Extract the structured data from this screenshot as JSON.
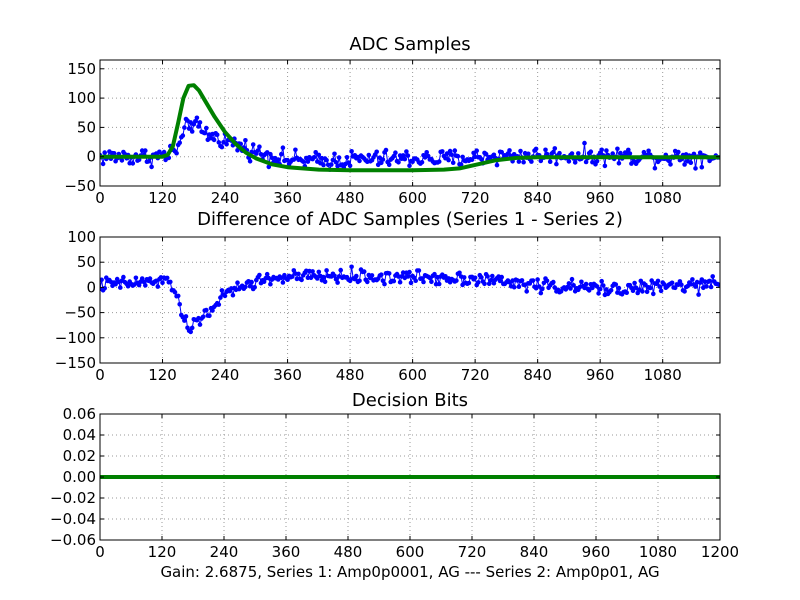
{
  "caption": "Gain: 2.6875, Series 1: Amp0p0001, AG --- Series 2: Amp0p01, AG",
  "colors": {
    "blue": "#0000ff",
    "green": "#008000",
    "grid": "#9a9a9a"
  },
  "chart_data": [
    {
      "type": "line",
      "title": "ADC Samples",
      "xlabel": "",
      "ylabel": "",
      "xlim": [
        0,
        1190
      ],
      "ylim": [
        -50,
        165
      ],
      "x_ticks": [
        "0",
        "120",
        "240",
        "360",
        "480",
        "600",
        "720",
        "840",
        "960",
        "1080"
      ],
      "y_ticks": [
        "−50",
        "0",
        "50",
        "100",
        "150"
      ],
      "x_tick_values": [
        0,
        120,
        240,
        360,
        480,
        600,
        720,
        840,
        960,
        1080
      ],
      "y_tick_values": [
        -50,
        0,
        50,
        100,
        150
      ],
      "grid": true,
      "series": [
        {
          "color": "#0000ff",
          "marker": "dot",
          "style": "noisy",
          "x": [
            0,
            100,
            130,
            150,
            160,
            170,
            180,
            200,
            240,
            300,
            360,
            420,
            480,
            540,
            600,
            660,
            720,
            780,
            840,
            900,
            960,
            1020,
            1080,
            1190
          ],
          "y": [
            0,
            0,
            2,
            15,
            35,
            60,
            55,
            40,
            28,
            8,
            -5,
            -8,
            -5,
            -4,
            -3,
            -4,
            -1,
            1,
            2,
            2,
            1,
            1,
            0,
            0
          ],
          "noise": 14
        },
        {
          "color": "#008000",
          "marker": "none",
          "style": "thick",
          "x": [
            0,
            120,
            130,
            140,
            150,
            160,
            170,
            180,
            190,
            200,
            220,
            240,
            260,
            280,
            300,
            330,
            360,
            420,
            480,
            540,
            600,
            660,
            690,
            720,
            760,
            800,
            840,
            900,
            960,
            1080,
            1190
          ],
          "y": [
            0,
            0,
            3,
            18,
            58,
            100,
            121,
            122,
            113,
            98,
            68,
            42,
            22,
            7,
            -3,
            -13,
            -18,
            -22,
            -23,
            -23,
            -23,
            -22,
            -20,
            -14,
            -6,
            -2,
            -1,
            -1,
            -1,
            -1,
            -1
          ]
        }
      ]
    },
    {
      "type": "line",
      "title": "Difference of ADC Samples (Series 1 - Series 2)",
      "xlabel": "",
      "ylabel": "",
      "xlim": [
        0,
        1190
      ],
      "ylim": [
        -150,
        100
      ],
      "x_ticks": [
        "0",
        "120",
        "240",
        "360",
        "480",
        "600",
        "720",
        "840",
        "960",
        "1080"
      ],
      "y_ticks": [
        "−150",
        "−100",
        "−50",
        "0",
        "50",
        "100"
      ],
      "x_tick_values": [
        0,
        120,
        240,
        360,
        480,
        600,
        720,
        840,
        960,
        1080
      ],
      "y_tick_values": [
        -150,
        -100,
        -50,
        0,
        50,
        100
      ],
      "grid": true,
      "series": [
        {
          "color": "#0000ff",
          "marker": "dot",
          "style": "noisy",
          "x": [
            0,
            120,
            140,
            150,
            160,
            170,
            180,
            200,
            220,
            240,
            270,
            300,
            330,
            360,
            420,
            480,
            540,
            600,
            660,
            720,
            780,
            840,
            900,
            960,
            1020,
            1080,
            1190
          ],
          "y": [
            5,
            12,
            5,
            -20,
            -70,
            -80,
            -75,
            -55,
            -35,
            -15,
            0,
            12,
            18,
            20,
            22,
            22,
            20,
            20,
            20,
            18,
            10,
            5,
            0,
            -2,
            -2,
            2,
            5
          ],
          "noise": 13
        }
      ]
    },
    {
      "type": "line",
      "title": "Decision Bits",
      "xlabel": "",
      "ylabel": "",
      "xlim": [
        0,
        1200
      ],
      "ylim": [
        -0.06,
        0.06
      ],
      "x_ticks": [
        "0",
        "120",
        "240",
        "360",
        "480",
        "600",
        "720",
        "840",
        "960",
        "1080",
        "1200"
      ],
      "y_ticks": [
        "−0.06",
        "−0.04",
        "−0.02",
        "0.00",
        "0.02",
        "0.04",
        "0.06"
      ],
      "x_tick_values": [
        0,
        120,
        240,
        360,
        480,
        600,
        720,
        840,
        960,
        1080,
        1200
      ],
      "y_tick_values": [
        -0.06,
        -0.04,
        -0.02,
        0,
        0.02,
        0.04,
        0.06
      ],
      "grid": true,
      "series": [
        {
          "color": "#008000",
          "marker": "none",
          "style": "thick",
          "x": [
            0,
            1200
          ],
          "y": [
            0,
            0
          ]
        }
      ]
    }
  ]
}
